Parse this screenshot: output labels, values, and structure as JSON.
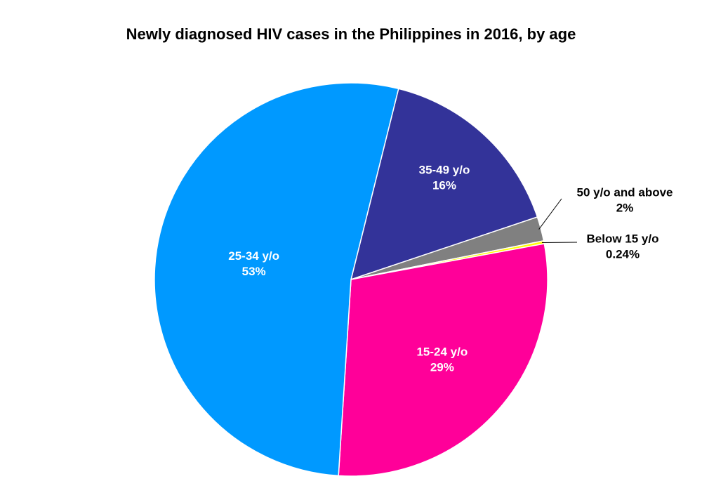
{
  "chart_data": {
    "type": "pie",
    "title": "Newly diagnosed HIV cases in the Philippines in 2016, by age",
    "categories": [
      "35-49 y/o",
      "50 y/o and above",
      "Below 15 y/o",
      "15-24 y/o",
      "25-34 y/o"
    ],
    "values": [
      16,
      2,
      0.24,
      29,
      53
    ],
    "value_labels": [
      "16%",
      "2%",
      "0.24%",
      "29%",
      "53%"
    ],
    "colors": [
      "#333399",
      "#808080",
      "#ffff00",
      "#ff0099",
      "#0099ff"
    ]
  }
}
